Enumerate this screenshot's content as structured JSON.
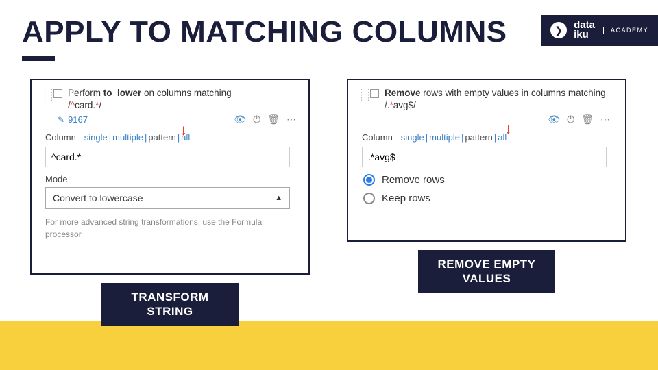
{
  "slide": {
    "title": "APPLY TO MATCHING COLUMNS",
    "brand": {
      "name_line1": "data",
      "name_line2": "iku",
      "sub": "ACADEMY"
    }
  },
  "left": {
    "desc_prefix": "Perform ",
    "desc_bold": "to_lower",
    "desc_suffix": " on columns matching",
    "pattern_display": "/^card.*/",
    "row_count": "9167",
    "column_label": "Column",
    "selector": {
      "opts": [
        "single",
        "multiple",
        "pattern",
        "all"
      ],
      "selected": "pattern"
    },
    "pattern_value": "^card.*",
    "mode_label": "Mode",
    "mode_value": "Convert to lowercase",
    "hint": "For more advanced string transformations, use the Formula processor",
    "caption": "TRANSFORM STRING"
  },
  "right": {
    "desc_bold": "Remove",
    "desc_suffix": " rows with empty values in columns matching /.*avg$/",
    "column_label": "Column",
    "selector": {
      "opts": [
        "single",
        "multiple",
        "pattern",
        "all"
      ],
      "selected": "pattern"
    },
    "pattern_value": ".*avg$",
    "radio_remove": "Remove rows",
    "radio_keep": "Keep rows",
    "caption": "REMOVE EMPTY VALUES"
  },
  "colors": {
    "navy": "#1a1e3a",
    "yellow": "#f8cf3c",
    "link": "#3b82c4",
    "red": "#e6332a",
    "radio_blue": "#2a7de1"
  }
}
